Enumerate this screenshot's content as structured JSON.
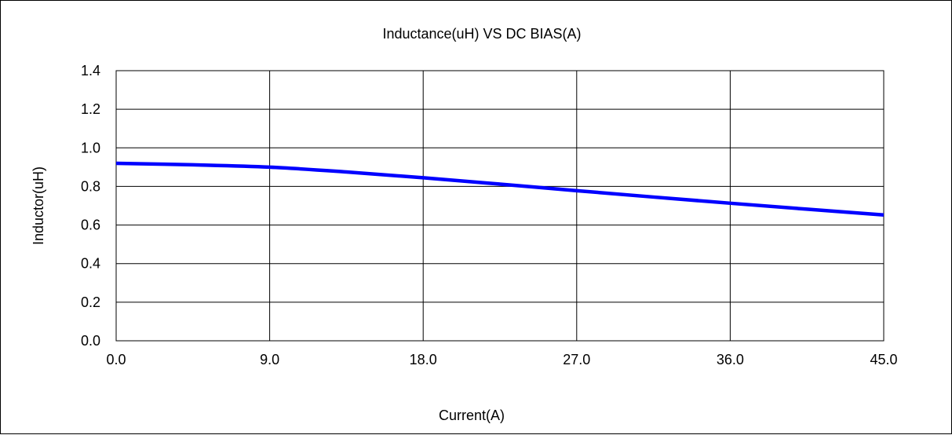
{
  "chart_data": {
    "type": "line",
    "title": "Inductance(uH) VS DC BIAS(A)",
    "xlabel": "Current(A)",
    "ylabel": "Inductor(uH)",
    "xlim": [
      0,
      45
    ],
    "ylim": [
      0,
      1.4
    ],
    "x_ticks": [
      "0.0",
      "9.0",
      "18.0",
      "27.0",
      "36.0",
      "45.0"
    ],
    "y_ticks": [
      "0.0",
      "0.2",
      "0.4",
      "0.6",
      "0.8",
      "1.0",
      "1.2",
      "1.4"
    ],
    "grid": true,
    "series": [
      {
        "color": "#0000ff",
        "x": [
          0,
          4.5,
          9,
          13.5,
          18,
          22.5,
          27,
          31.5,
          36,
          40.5,
          45
        ],
        "y": [
          0.92,
          0.912,
          0.9,
          0.875,
          0.845,
          0.812,
          0.778,
          0.745,
          0.713,
          0.682,
          0.652
        ]
      }
    ]
  }
}
